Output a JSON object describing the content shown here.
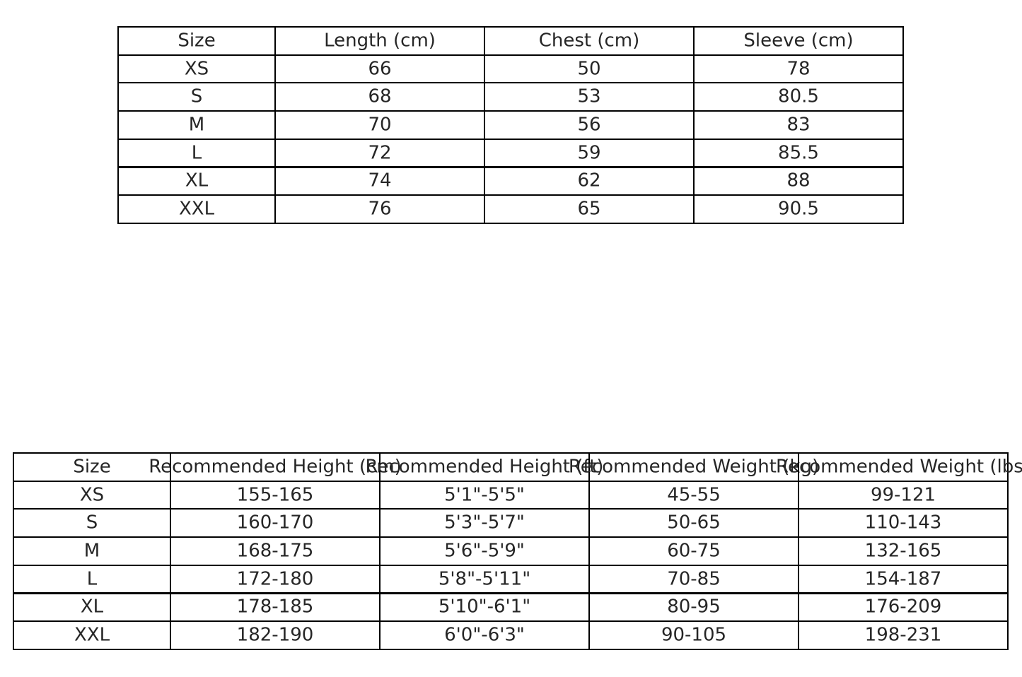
{
  "measurements_table": {
    "headers": [
      "Size",
      "Length (cm)",
      "Chest (cm)",
      "Sleeve (cm)"
    ],
    "rows": [
      [
        "XS",
        "66",
        "50",
        "78"
      ],
      [
        "S",
        "68",
        "53",
        "80.5"
      ],
      [
        "M",
        "70",
        "56",
        "83"
      ],
      [
        "L",
        "72",
        "59",
        "85.5"
      ],
      [
        "XL",
        "74",
        "62",
        "88"
      ],
      [
        "XXL",
        "76",
        "65",
        "90.5"
      ]
    ]
  },
  "recommendation_table": {
    "headers": [
      "Size",
      "Recommended Height (cm)",
      "Recommended Height (ft)",
      "Recommended Weight (kg)",
      "Recommended Weight (lbs)"
    ],
    "rows": [
      [
        "XS",
        "155-165",
        "5'1\"-5'5\"",
        "45-55",
        "99-121"
      ],
      [
        "S",
        "160-170",
        "5'3\"-5'7\"",
        "50-65",
        "110-143"
      ],
      [
        "M",
        "168-175",
        "5'6\"-5'9\"",
        "60-75",
        "132-165"
      ],
      [
        "L",
        "172-180",
        "5'8\"-5'11\"",
        "70-85",
        "154-187"
      ],
      [
        "XL",
        "178-185",
        "5'10\"-6'1\"",
        "80-95",
        "176-209"
      ],
      [
        "XXL",
        "182-190",
        "6'0\"-6'3\"",
        "90-105",
        "198-231"
      ]
    ]
  }
}
